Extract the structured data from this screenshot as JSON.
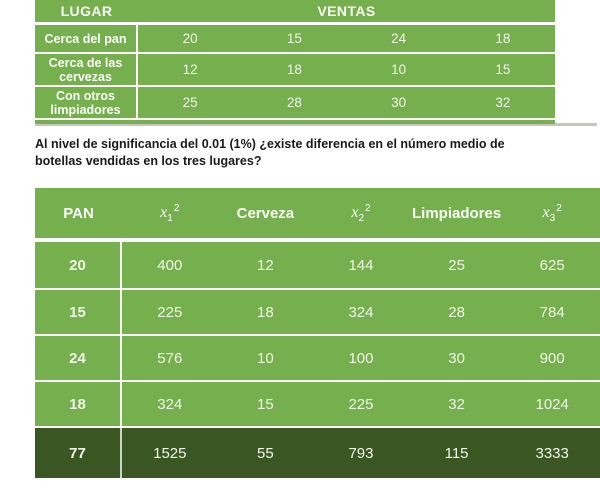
{
  "colors": {
    "green": "#76AF4D",
    "dark_green": "#3A5623",
    "cell_text": "#F1F5E9",
    "header_text": "#FBFDF8",
    "line": "#FFFFFF",
    "question_color": "#1A1A1A",
    "shadow": "#8E9C80"
  },
  "sales_table": {
    "col_header_lugar": "LUGAR",
    "col_header_ventas": "VENTAS",
    "rows": [
      {
        "label": "Cerca del pan",
        "values": [
          "20",
          "15",
          "24",
          "18"
        ]
      },
      {
        "label": "Cerca de las cervezas",
        "values": [
          "12",
          "18",
          "10",
          "15"
        ]
      },
      {
        "label": "Con otros limpiadores",
        "values": [
          "25",
          "28",
          "30",
          "32"
        ]
      }
    ]
  },
  "question": "Al nivel de significancia del 0.01 (1%) ¿existe diferencia en el número medio de botellas vendidas en los tres lugares?",
  "squares_table": {
    "headers": {
      "pan": "PAN",
      "x1": {
        "base": "x",
        "sub": "1",
        "sup": "2"
      },
      "cerveza": "Cerveza",
      "x2": {
        "base": "x",
        "sub": "2",
        "sup": "2"
      },
      "limpiadores": "Limpiadores",
      "x3": {
        "base": "x",
        "sub": "3",
        "sup": "2"
      }
    },
    "rows": [
      [
        "20",
        "400",
        "12",
        "144",
        "25",
        "625"
      ],
      [
        "15",
        "225",
        "18",
        "324",
        "28",
        "784"
      ],
      [
        "24",
        "576",
        "10",
        "100",
        "30",
        "900"
      ],
      [
        "18",
        "324",
        "15",
        "225",
        "32",
        "1024"
      ]
    ],
    "totals": [
      "77",
      "1525",
      "55",
      "793",
      "115",
      "3333"
    ]
  }
}
